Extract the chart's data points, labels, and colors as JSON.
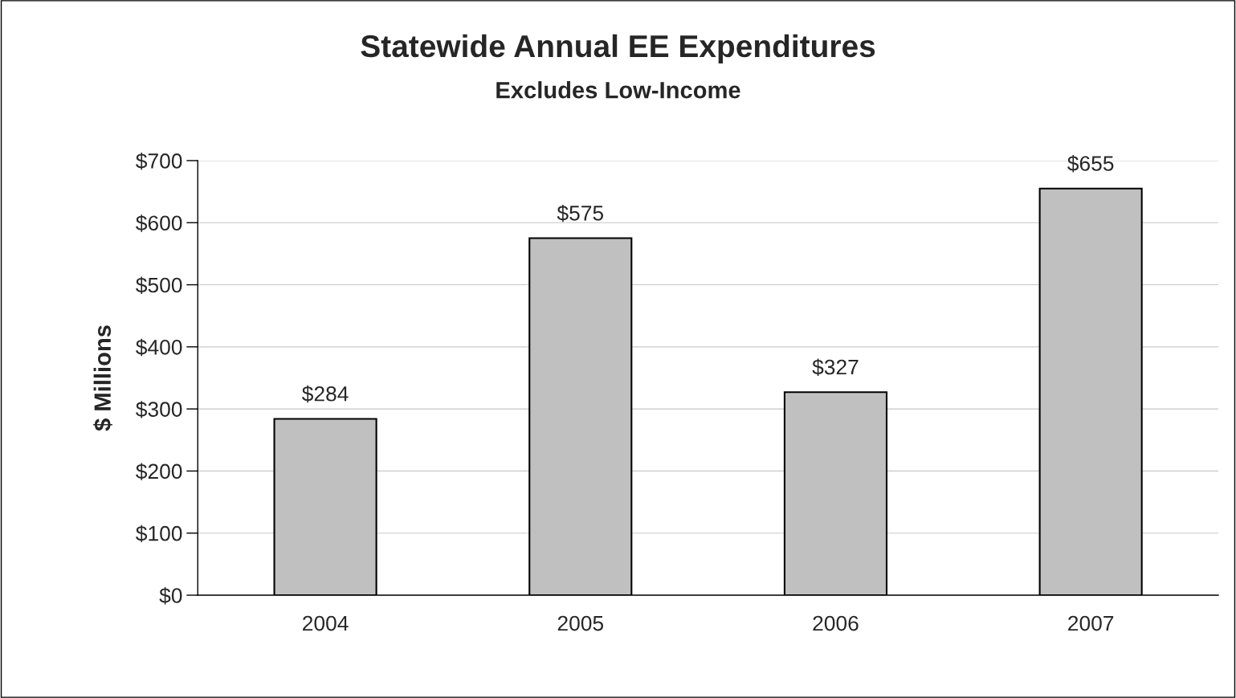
{
  "chart_data": {
    "type": "bar",
    "title": "Statewide Annual EE Expenditures",
    "subtitle": "Excludes Low-Income",
    "ylabel": "$ Millions",
    "categories": [
      "2004",
      "2005",
      "2006",
      "2007"
    ],
    "values": [
      284,
      575,
      327,
      655
    ],
    "value_labels": [
      "$284",
      "$575",
      "$327",
      "$655"
    ],
    "color": "#c0c0c0",
    "ylim": [
      0,
      700
    ],
    "yticks": [
      {
        "value": 0,
        "label": "$0"
      },
      {
        "value": 100,
        "label": "$100"
      },
      {
        "value": 200,
        "label": "$200"
      },
      {
        "value": 300,
        "label": "$300"
      },
      {
        "value": 400,
        "label": "$400"
      },
      {
        "value": 500,
        "label": "$500"
      },
      {
        "value": 600,
        "label": "$600"
      },
      {
        "value": 700,
        "label": "$700"
      }
    ],
    "grid": "y",
    "legend": false
  }
}
